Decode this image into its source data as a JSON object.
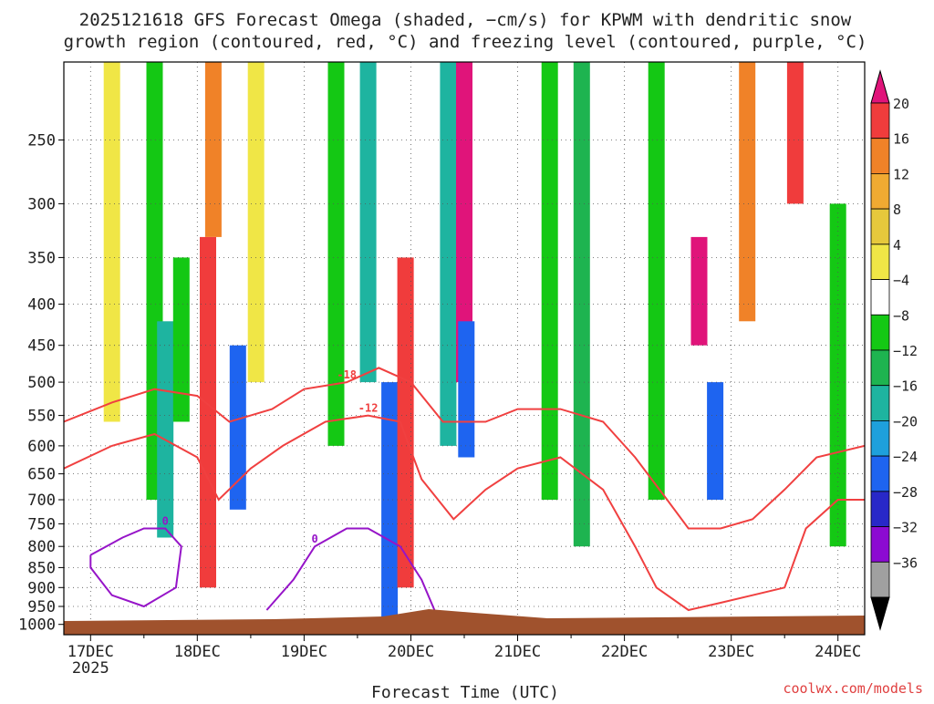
{
  "chart_data": {
    "type": "heatmap",
    "title_line1": "2025121618 GFS Forecast Omega (shaded, −cm/s) for KPWM with dendritic snow",
    "title_line2": "growth region (contoured, red, °C) and freezing level (contoured, purple, °C)",
    "xlabel": "Forecast Time (UTC)",
    "x_ticks": [
      "17DEC",
      "18DEC",
      "19DEC",
      "20DEC",
      "21DEC",
      "22DEC",
      "23DEC",
      "24DEC"
    ],
    "x_year": "2025",
    "x_range": [
      16.75,
      24.25
    ],
    "y_ticks": [
      250,
      300,
      350,
      400,
      450,
      500,
      550,
      600,
      650,
      700,
      750,
      800,
      850,
      900,
      950,
      1000
    ],
    "y_range": [
      200,
      1030
    ],
    "y_scale": "log",
    "grid": true,
    "colorbar": {
      "labels": [
        "20",
        "16",
        "12",
        "8",
        "4",
        "−4",
        "−8",
        "−12",
        "−16",
        "−20",
        "−24",
        "−28",
        "−32",
        "−36"
      ],
      "colors": [
        "#e0147a",
        "#f03c3c",
        "#f08228",
        "#f0aa32",
        "#e6c83c",
        "#f0e646",
        "#ffffff",
        "#14c814",
        "#1eb450",
        "#1eb4a0",
        "#1ea0dc",
        "#1e64f0",
        "#2828c8",
        "#8c0ad2",
        "#a0a0a0",
        "#000000"
      ]
    },
    "bands": [
      {
        "x": 17.2,
        "p0": 200,
        "p1": 560,
        "color": "#f0e646"
      },
      {
        "x": 17.6,
        "p0": 200,
        "p1": 700,
        "color": "#14c814"
      },
      {
        "x": 17.7,
        "p0": 420,
        "p1": 780,
        "color": "#1eb4a0"
      },
      {
        "x": 17.85,
        "p0": 350,
        "p1": 560,
        "color": "#14c814"
      },
      {
        "x": 18.1,
        "p0": 330,
        "p1": 900,
        "color": "#f03c3c"
      },
      {
        "x": 18.15,
        "p0": 200,
        "p1": 330,
        "color": "#f08228"
      },
      {
        "x": 18.38,
        "p0": 450,
        "p1": 720,
        "color": "#1e64f0"
      },
      {
        "x": 18.55,
        "p0": 200,
        "p1": 500,
        "color": "#f0e646"
      },
      {
        "x": 19.3,
        "p0": 200,
        "p1": 600,
        "color": "#14c814"
      },
      {
        "x": 19.6,
        "p0": 200,
        "p1": 500,
        "color": "#1eb4a0"
      },
      {
        "x": 19.8,
        "p0": 500,
        "p1": 1000,
        "color": "#1e64f0"
      },
      {
        "x": 19.95,
        "p0": 350,
        "p1": 900,
        "color": "#f03c3c"
      },
      {
        "x": 20.35,
        "p0": 200,
        "p1": 600,
        "color": "#1eb4a0"
      },
      {
        "x": 20.5,
        "p0": 200,
        "p1": 500,
        "color": "#e0147a"
      },
      {
        "x": 20.52,
        "p0": 420,
        "p1": 620,
        "color": "#1e64f0"
      },
      {
        "x": 21.3,
        "p0": 200,
        "p1": 700,
        "color": "#14c814"
      },
      {
        "x": 21.6,
        "p0": 200,
        "p1": 800,
        "color": "#1eb450"
      },
      {
        "x": 22.3,
        "p0": 200,
        "p1": 700,
        "color": "#14c814"
      },
      {
        "x": 22.7,
        "p0": 330,
        "p1": 450,
        "color": "#e0147a"
      },
      {
        "x": 22.85,
        "p0": 500,
        "p1": 700,
        "color": "#1e64f0"
      },
      {
        "x": 23.15,
        "p0": 200,
        "p1": 420,
        "color": "#f08228"
      },
      {
        "x": 23.6,
        "p0": 200,
        "p1": 300,
        "color": "#f03c3c"
      },
      {
        "x": 24.0,
        "p0": 300,
        "p1": 800,
        "color": "#14c814"
      }
    ],
    "contours": [
      {
        "label": "-18",
        "color": "#f04040",
        "points": [
          [
            16.75,
            560
          ],
          [
            17.2,
            530
          ],
          [
            17.6,
            510
          ],
          [
            18.0,
            520
          ],
          [
            18.3,
            560
          ],
          [
            18.7,
            540
          ],
          [
            19.0,
            510
          ],
          [
            19.4,
            500
          ],
          [
            19.7,
            480
          ],
          [
            20.0,
            500
          ],
          [
            20.3,
            560
          ],
          [
            20.7,
            560
          ],
          [
            21.0,
            540
          ],
          [
            21.4,
            540
          ],
          [
            21.8,
            560
          ],
          [
            22.1,
            620
          ],
          [
            22.4,
            700
          ],
          [
            22.6,
            760
          ],
          [
            22.9,
            760
          ],
          [
            23.2,
            740
          ],
          [
            23.5,
            680
          ],
          [
            23.8,
            620
          ],
          [
            24.25,
            600
          ]
        ]
      },
      {
        "label": "-12",
        "color": "#f04040",
        "points": [
          [
            16.75,
            640
          ],
          [
            17.2,
            600
          ],
          [
            17.6,
            580
          ],
          [
            18.0,
            620
          ],
          [
            18.2,
            700
          ],
          [
            18.5,
            640
          ],
          [
            18.8,
            600
          ],
          [
            19.2,
            560
          ],
          [
            19.6,
            550
          ],
          [
            19.9,
            560
          ],
          [
            20.1,
            660
          ],
          [
            20.4,
            740
          ],
          [
            20.7,
            680
          ],
          [
            21.0,
            640
          ],
          [
            21.4,
            620
          ],
          [
            21.8,
            680
          ],
          [
            22.1,
            800
          ],
          [
            22.3,
            900
          ],
          [
            22.6,
            960
          ],
          [
            22.9,
            940
          ],
          [
            23.2,
            920
          ],
          [
            23.5,
            900
          ],
          [
            23.7,
            760
          ],
          [
            24.0,
            700
          ],
          [
            24.25,
            700
          ]
        ]
      },
      {
        "label": "0",
        "color": "#9614c8",
        "points": [
          [
            17.0,
            820
          ],
          [
            17.3,
            780
          ],
          [
            17.5,
            760
          ],
          [
            17.7,
            760
          ],
          [
            17.85,
            800
          ],
          [
            17.8,
            900
          ],
          [
            17.5,
            950
          ],
          [
            17.2,
            920
          ],
          [
            17.0,
            850
          ],
          [
            17.0,
            820
          ]
        ]
      },
      {
        "label": "0",
        "color": "#9614c8",
        "points": [
          [
            18.65,
            960
          ],
          [
            18.9,
            880
          ],
          [
            19.1,
            800
          ],
          [
            19.4,
            760
          ],
          [
            19.6,
            760
          ],
          [
            19.9,
            800
          ],
          [
            20.1,
            880
          ],
          [
            20.25,
            980
          ]
        ]
      }
    ]
  },
  "credit": "coolwx.com/models"
}
